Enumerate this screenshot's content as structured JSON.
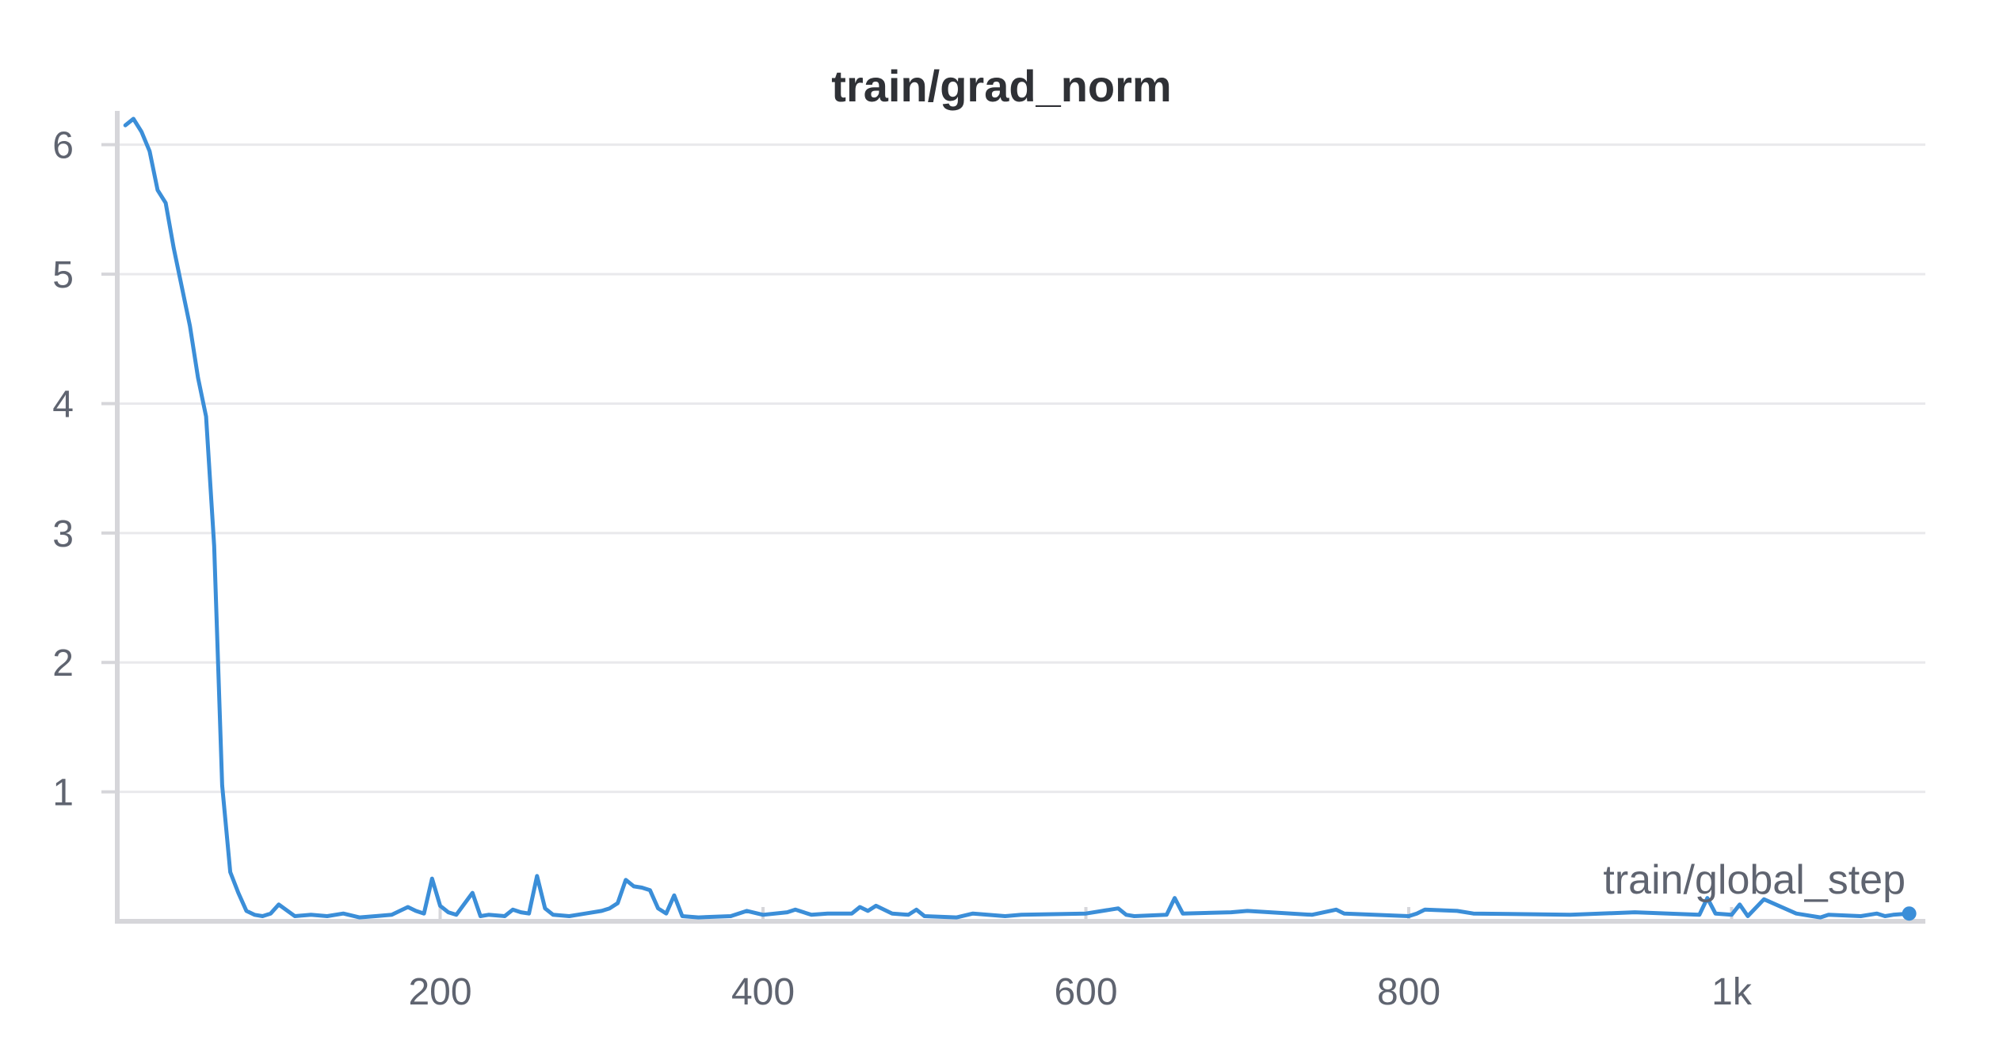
{
  "chart_data": {
    "type": "line",
    "title": "train/grad_norm",
    "xlabel": "train/global_step",
    "ylabel": "",
    "xlim": [
      0,
      1120
    ],
    "ylim": [
      0,
      6.2
    ],
    "x_ticks": [
      200,
      400,
      600,
      800,
      1000
    ],
    "x_tick_labels": [
      "200",
      "400",
      "600",
      "800",
      "1k"
    ],
    "y_ticks": [
      1,
      2,
      3,
      4,
      5,
      6
    ],
    "y_tick_labels": [
      "1",
      "2",
      "3",
      "4",
      "5",
      "6"
    ],
    "grid": true,
    "colors": {
      "series": "#3b8ed8"
    },
    "series": [
      {
        "x": [
          5,
          10,
          15,
          20,
          25,
          30,
          35,
          40,
          45,
          50,
          55,
          60,
          65,
          70,
          75,
          80,
          85,
          90,
          95,
          100,
          110,
          120,
          130,
          140,
          150,
          160,
          170,
          180,
          185,
          190,
          195,
          200,
          205,
          210,
          220,
          225,
          230,
          240,
          245,
          250,
          255,
          260,
          265,
          270,
          280,
          290,
          300,
          305,
          310,
          315,
          320,
          325,
          330,
          335,
          340,
          345,
          350,
          360,
          380,
          390,
          400,
          415,
          420,
          430,
          440,
          455,
          460,
          465,
          470,
          480,
          490,
          495,
          500,
          520,
          530,
          550,
          560,
          600,
          620,
          625,
          630,
          650,
          655,
          660,
          690,
          700,
          740,
          755,
          760,
          800,
          805,
          810,
          830,
          840,
          900,
          940,
          980,
          985,
          990,
          1000,
          1005,
          1010,
          1020,
          1040,
          1050,
          1055,
          1060,
          1080,
          1090,
          1095,
          1100,
          1110
        ],
        "values": [
          6.15,
          6.2,
          6.1,
          5.95,
          5.65,
          5.55,
          5.2,
          4.9,
          4.6,
          4.2,
          3.9,
          2.9,
          1.05,
          0.38,
          0.22,
          0.08,
          0.05,
          0.04,
          0.06,
          0.13,
          0.04,
          0.05,
          0.04,
          0.06,
          0.03,
          0.04,
          0.05,
          0.11,
          0.08,
          0.06,
          0.33,
          0.12,
          0.07,
          0.05,
          0.22,
          0.04,
          0.05,
          0.04,
          0.09,
          0.07,
          0.06,
          0.35,
          0.1,
          0.05,
          0.04,
          0.06,
          0.08,
          0.1,
          0.14,
          0.32,
          0.27,
          0.26,
          0.24,
          0.1,
          0.06,
          0.2,
          0.04,
          0.03,
          0.04,
          0.08,
          0.05,
          0.07,
          0.09,
          0.05,
          0.06,
          0.06,
          0.11,
          0.08,
          0.12,
          0.06,
          0.05,
          0.09,
          0.04,
          0.03,
          0.06,
          0.04,
          0.05,
          0.06,
          0.1,
          0.05,
          0.04,
          0.05,
          0.18,
          0.06,
          0.07,
          0.08,
          0.05,
          0.09,
          0.06,
          0.04,
          0.06,
          0.09,
          0.08,
          0.06,
          0.05,
          0.07,
          0.05,
          0.18,
          0.06,
          0.05,
          0.13,
          0.04,
          0.17,
          0.06,
          0.04,
          0.03,
          0.05,
          0.04,
          0.06,
          0.04,
          0.05,
          0.06
        ]
      }
    ]
  }
}
